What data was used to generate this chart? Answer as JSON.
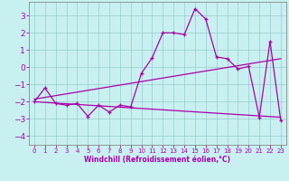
{
  "xlabel": "Windchill (Refroidissement éolien,°C)",
  "background_color": "#c8f0f0",
  "grid_color": "#99cccc",
  "line_color": "#aa00aa",
  "spine_color": "#888888",
  "xlim": [
    -0.5,
    23.5
  ],
  "ylim": [
    -4.5,
    3.8
  ],
  "xticks": [
    0,
    1,
    2,
    3,
    4,
    5,
    6,
    7,
    8,
    9,
    10,
    11,
    12,
    13,
    14,
    15,
    16,
    17,
    18,
    19,
    20,
    21,
    22,
    23
  ],
  "yticks": [
    -4,
    -3,
    -2,
    -1,
    0,
    1,
    2,
    3
  ],
  "line1_x": [
    0,
    1,
    2,
    3,
    4,
    5,
    6,
    7,
    8,
    9,
    10,
    11,
    12,
    13,
    14,
    15,
    16,
    17,
    18,
    19,
    20,
    21,
    22,
    23
  ],
  "line1_y": [
    -2.0,
    -1.2,
    -2.1,
    -2.2,
    -2.1,
    -2.85,
    -2.2,
    -2.6,
    -2.2,
    -2.3,
    -0.35,
    0.55,
    2.0,
    2.0,
    1.9,
    3.4,
    2.8,
    0.6,
    0.5,
    -0.1,
    0.05,
    -2.9,
    1.5,
    -3.1
  ],
  "line2_x": [
    0,
    23
  ],
  "line2_y": [
    -1.85,
    0.5
  ],
  "line3_x": [
    0,
    23
  ],
  "line3_y": [
    -2.0,
    -2.9
  ],
  "marker": "+"
}
